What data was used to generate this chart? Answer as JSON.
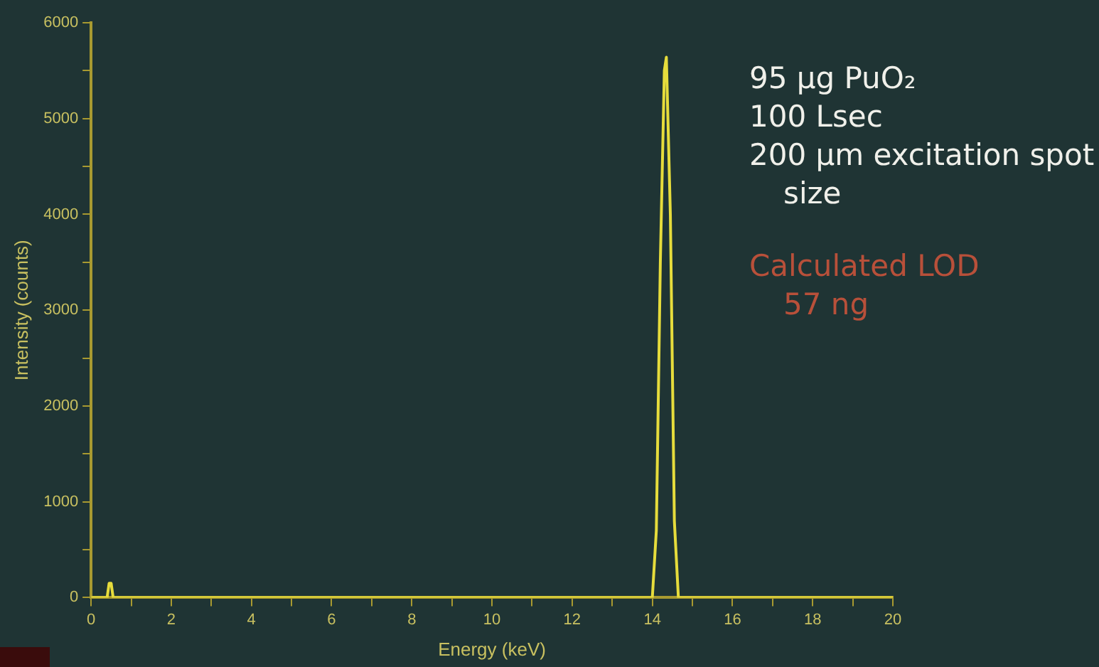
{
  "chart_data": {
    "type": "line",
    "xlabel": "Energy (keV)",
    "ylabel": "Intensity (counts)",
    "x": [
      0,
      0.4,
      0.45,
      0.5,
      0.55,
      0.6,
      14.0,
      14.1,
      14.2,
      14.3,
      14.35,
      14.45,
      14.55,
      14.65,
      20
    ],
    "series": [
      {
        "color": "#e6dc3c",
        "values": [
          0,
          0,
          150,
          150,
          0,
          0,
          0,
          700,
          3500,
          5500,
          5640,
          4000,
          800,
          0,
          0
        ]
      }
    ],
    "xlim": [
      0,
      20
    ],
    "xticks": [
      0,
      {
        "value": 1,
        "label": null
      },
      2,
      {
        "value": 3,
        "label": null
      },
      4,
      {
        "value": 5,
        "label": null
      },
      6,
      {
        "value": 7,
        "label": null
      },
      8,
      {
        "value": 9,
        "label": null
      },
      10,
      {
        "value": 11,
        "label": null
      },
      12,
      {
        "value": 13,
        "label": null
      },
      14,
      {
        "value": 15,
        "label": null
      },
      16,
      {
        "value": 17,
        "label": null
      },
      18,
      {
        "value": 19,
        "label": null
      },
      20
    ],
    "ylim": [
      0,
      6000
    ],
    "yticks": [
      0,
      {
        "value": 500,
        "label": null
      },
      1000,
      {
        "value": 1500,
        "label": null
      },
      2000,
      {
        "value": 2500,
        "label": null
      },
      3000,
      {
        "value": 3500,
        "label": null
      },
      4000,
      {
        "value": 4500,
        "label": null
      },
      5000,
      {
        "value": 5500,
        "label": null
      },
      6000
    ],
    "grid": false,
    "legend": false,
    "marker": "none",
    "line_style": "solid",
    "annotations": [
      "95 µg PuO₂",
      "100 Lsec",
      "200 µm excitation spot size",
      "Calculated LOD 57 ng"
    ]
  }
}
